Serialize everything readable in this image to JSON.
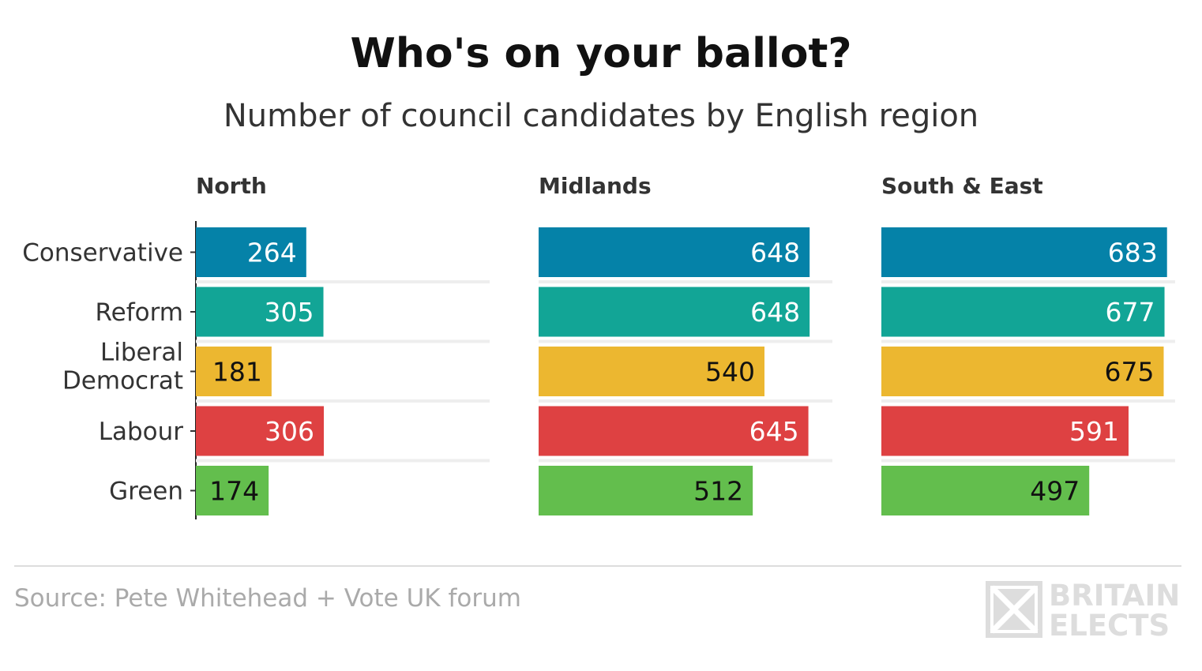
{
  "title": "Who's on your ballot?",
  "subtitle": "Number of council candidates by English region",
  "source": "Source: Pete Whitehead + Vote UK forum",
  "logo": {
    "line1": "BRITAIN",
    "line2": "ELECTS"
  },
  "chart_data": {
    "type": "bar",
    "orientation": "horizontal",
    "categories": [
      "Conservative",
      "Reform",
      "Liberal Democrat",
      "Labour",
      "Green"
    ],
    "category_colors": [
      "#0582a8",
      "#12a596",
      "#ecb730",
      "#de4142",
      "#63be4d"
    ],
    "value_label_colors": [
      "#ffffff",
      "#ffffff",
      "#111111",
      "#ffffff",
      "#111111"
    ],
    "xlim": [
      0,
      800
    ],
    "panels": [
      {
        "name": "North",
        "values": [
          264,
          305,
          181,
          306,
          174
        ]
      },
      {
        "name": "Midlands",
        "values": [
          648,
          648,
          540,
          645,
          512
        ]
      },
      {
        "name": "South & East",
        "values": [
          683,
          677,
          675,
          591,
          497
        ]
      }
    ]
  }
}
